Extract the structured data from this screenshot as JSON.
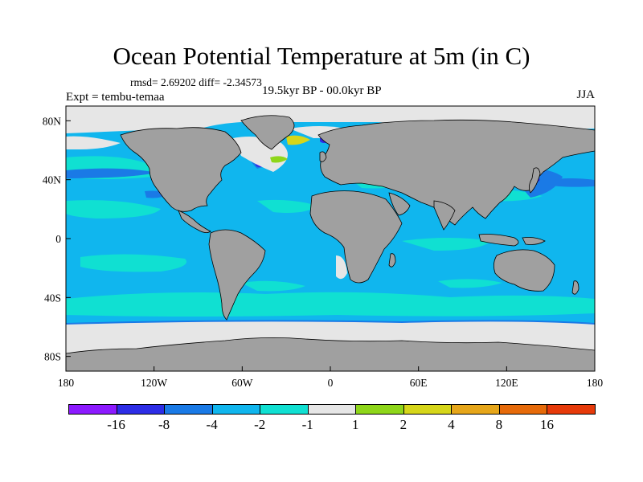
{
  "title": "Ocean Potential Temperature at 5m (in C)",
  "stats": "rmsd= 2.69202  diff= -2.34573",
  "experiment": "Expt = tembu-temaa",
  "period": "19.5kyr BP - 00.0kyr BP",
  "season": "JJA",
  "map": {
    "lon_labels": [
      "180",
      "120W",
      "60W",
      "0",
      "60E",
      "120E",
      "180"
    ],
    "lat_labels": [
      "80N",
      "40N",
      "0",
      "40S",
      "80S"
    ],
    "land_color": "#a0a0a0",
    "ocean_color": "#10b6ee"
  },
  "colorbar": {
    "colors": [
      "#8c1aff",
      "#2d2de6",
      "#1a7ae6",
      "#10b6ee",
      "#10e0d2",
      "#e6e6e6",
      "#8ed61a",
      "#d6d61a",
      "#e6a61a",
      "#e66a0a",
      "#e63a0a"
    ],
    "labels": [
      "-16",
      "-8",
      "-4",
      "-2",
      "-1",
      "1",
      "2",
      "4",
      "8",
      "16"
    ]
  }
}
